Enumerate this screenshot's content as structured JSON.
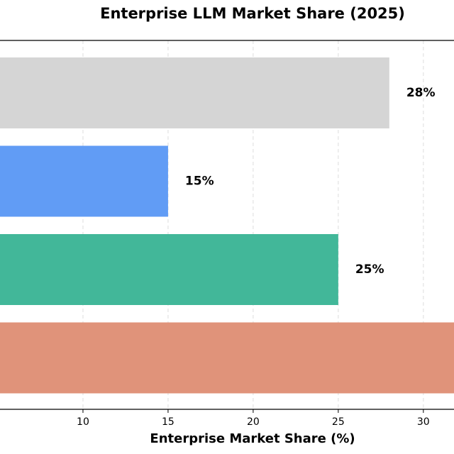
{
  "chart_data": {
    "type": "barh",
    "title": "Enterprise LLM Market Share (2025)",
    "xlabel": "Enterprise Market Share (%)",
    "categories": [
      null,
      null,
      null,
      null
    ],
    "values": [
      28,
      15,
      25,
      32
    ],
    "value_labels": [
      "28%",
      "15%",
      "25%",
      null
    ],
    "colors": [
      "#d5d5d5",
      "#619cf5",
      "#42b799",
      "#e0937a"
    ],
    "xlim": [
      5.125,
      31.8
    ],
    "xticks": [
      10,
      15,
      20,
      25,
      30
    ],
    "grid": true
  }
}
